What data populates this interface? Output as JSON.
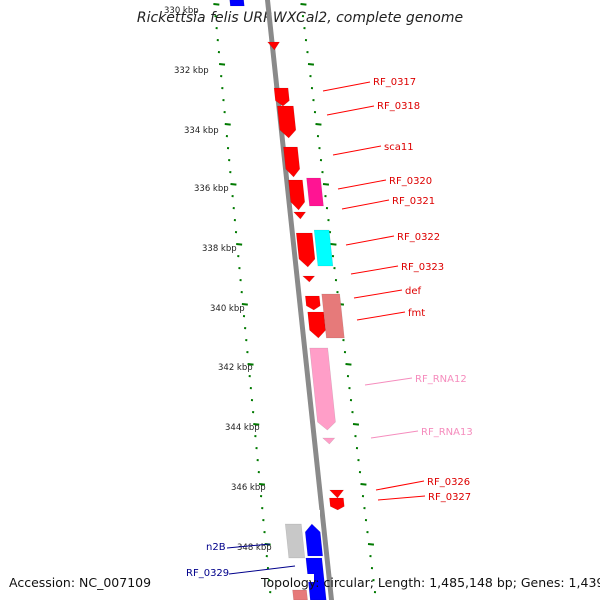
{
  "title": "Rickettsia felis URRWXCal2, complete genome",
  "footer": {
    "accession": "Accession: NC_007109",
    "summary": "Topology: circular; Length: 1,485,148 bp; Genes: 1,439"
  },
  "scale": {
    "top_label": "330 kbp",
    "ticks": [
      "332 kbp",
      "334 kbp",
      "336 kbp",
      "338 kbp",
      "340 kbp",
      "342 kbp",
      "344 kbp",
      "346 kbp",
      "348 kbp"
    ]
  },
  "colors": {
    "red": "#ff0000",
    "magenta": "#ff1493",
    "cyan": "#00ffff",
    "salmon": "#e67a7a",
    "pink": "#ff9ec8",
    "gray": "#c8c8c8",
    "blue": "#0000ff",
    "tick_green": "#007a00"
  },
  "genes_right": [
    {
      "label": "RF_0317",
      "color": "#dd0000"
    },
    {
      "label": "RF_0318",
      "color": "#dd0000"
    },
    {
      "label": "sca11",
      "color": "#dd0000"
    },
    {
      "label": "RF_0320",
      "color": "#dd0000"
    },
    {
      "label": "RF_0321",
      "color": "#dd0000"
    },
    {
      "label": "RF_0322",
      "color": "#dd0000"
    },
    {
      "label": "RF_0323",
      "color": "#dd0000"
    },
    {
      "label": "def",
      "color": "#dd0000"
    },
    {
      "label": "fmt",
      "color": "#dd0000"
    },
    {
      "label": "RF_RNA12",
      "color": "#f58cbd"
    },
    {
      "label": "RF_RNA13",
      "color": "#f58cbd"
    },
    {
      "label": "RF_0326",
      "color": "#dd0000"
    },
    {
      "label": "RF_0327",
      "color": "#dd0000"
    }
  ],
  "genes_left": [
    {
      "label": "n2B",
      "color": "#00008b"
    },
    {
      "label": "RF_0329",
      "color": "#00008b"
    }
  ]
}
